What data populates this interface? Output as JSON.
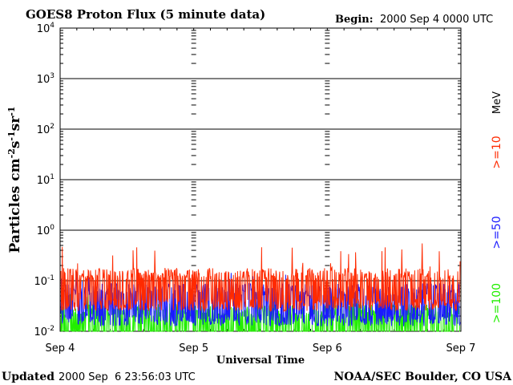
{
  "header": {
    "title": "GOES8 Proton Flux (5 minute data)",
    "begin_label": "Begin:",
    "begin_value": "2000 Sep 4 0000 UTC"
  },
  "footer": {
    "updated_label": "Updated",
    "updated_value": "2000 Sep  6 23:56:03 UTC",
    "credit": "NOAA/SEC Boulder, CO USA"
  },
  "legend": {
    "unit": "MeV",
    "entries": [
      {
        "label": ">=10",
        "color": "#ff2a00"
      },
      {
        "label": ">=50",
        "color": "#1a1aff"
      },
      {
        "label": ">=100",
        "color": "#22ee00"
      }
    ]
  },
  "chart_data": {
    "type": "line",
    "ylabel": "Particles cm-2s-1sr-1",
    "xlabel": "Universal Time",
    "y_scale": "log",
    "ylim": [
      0.01,
      10000
    ],
    "y_ticks": [
      {
        "base": "10",
        "exp": "4"
      },
      {
        "base": "10",
        "exp": "3"
      },
      {
        "base": "10",
        "exp": "2"
      },
      {
        "base": "10",
        "exp": "1"
      },
      {
        "base": "10",
        "exp": "0"
      },
      {
        "base": "10",
        "exp": "-1"
      },
      {
        "base": "10",
        "exp": "-2"
      }
    ],
    "x_ticks": [
      "Sep 4",
      "Sep 5",
      "Sep 6",
      "Sep 7"
    ],
    "xlim": [
      "2000-09-04 00:00",
      "2000-09-07 00:00"
    ],
    "grid": "horizontal lines at each decade",
    "series": [
      {
        "name": ">=10",
        "color": "#ff2a00",
        "baseline": 0.1,
        "spike_max": 0.6
      },
      {
        "name": ">=50",
        "color": "#1a1aff",
        "baseline": 0.05,
        "spike_max": 0.15
      },
      {
        "name": ">=100",
        "color": "#22ee00",
        "baseline": 0.02,
        "spike_max": 0.06
      }
    ]
  }
}
